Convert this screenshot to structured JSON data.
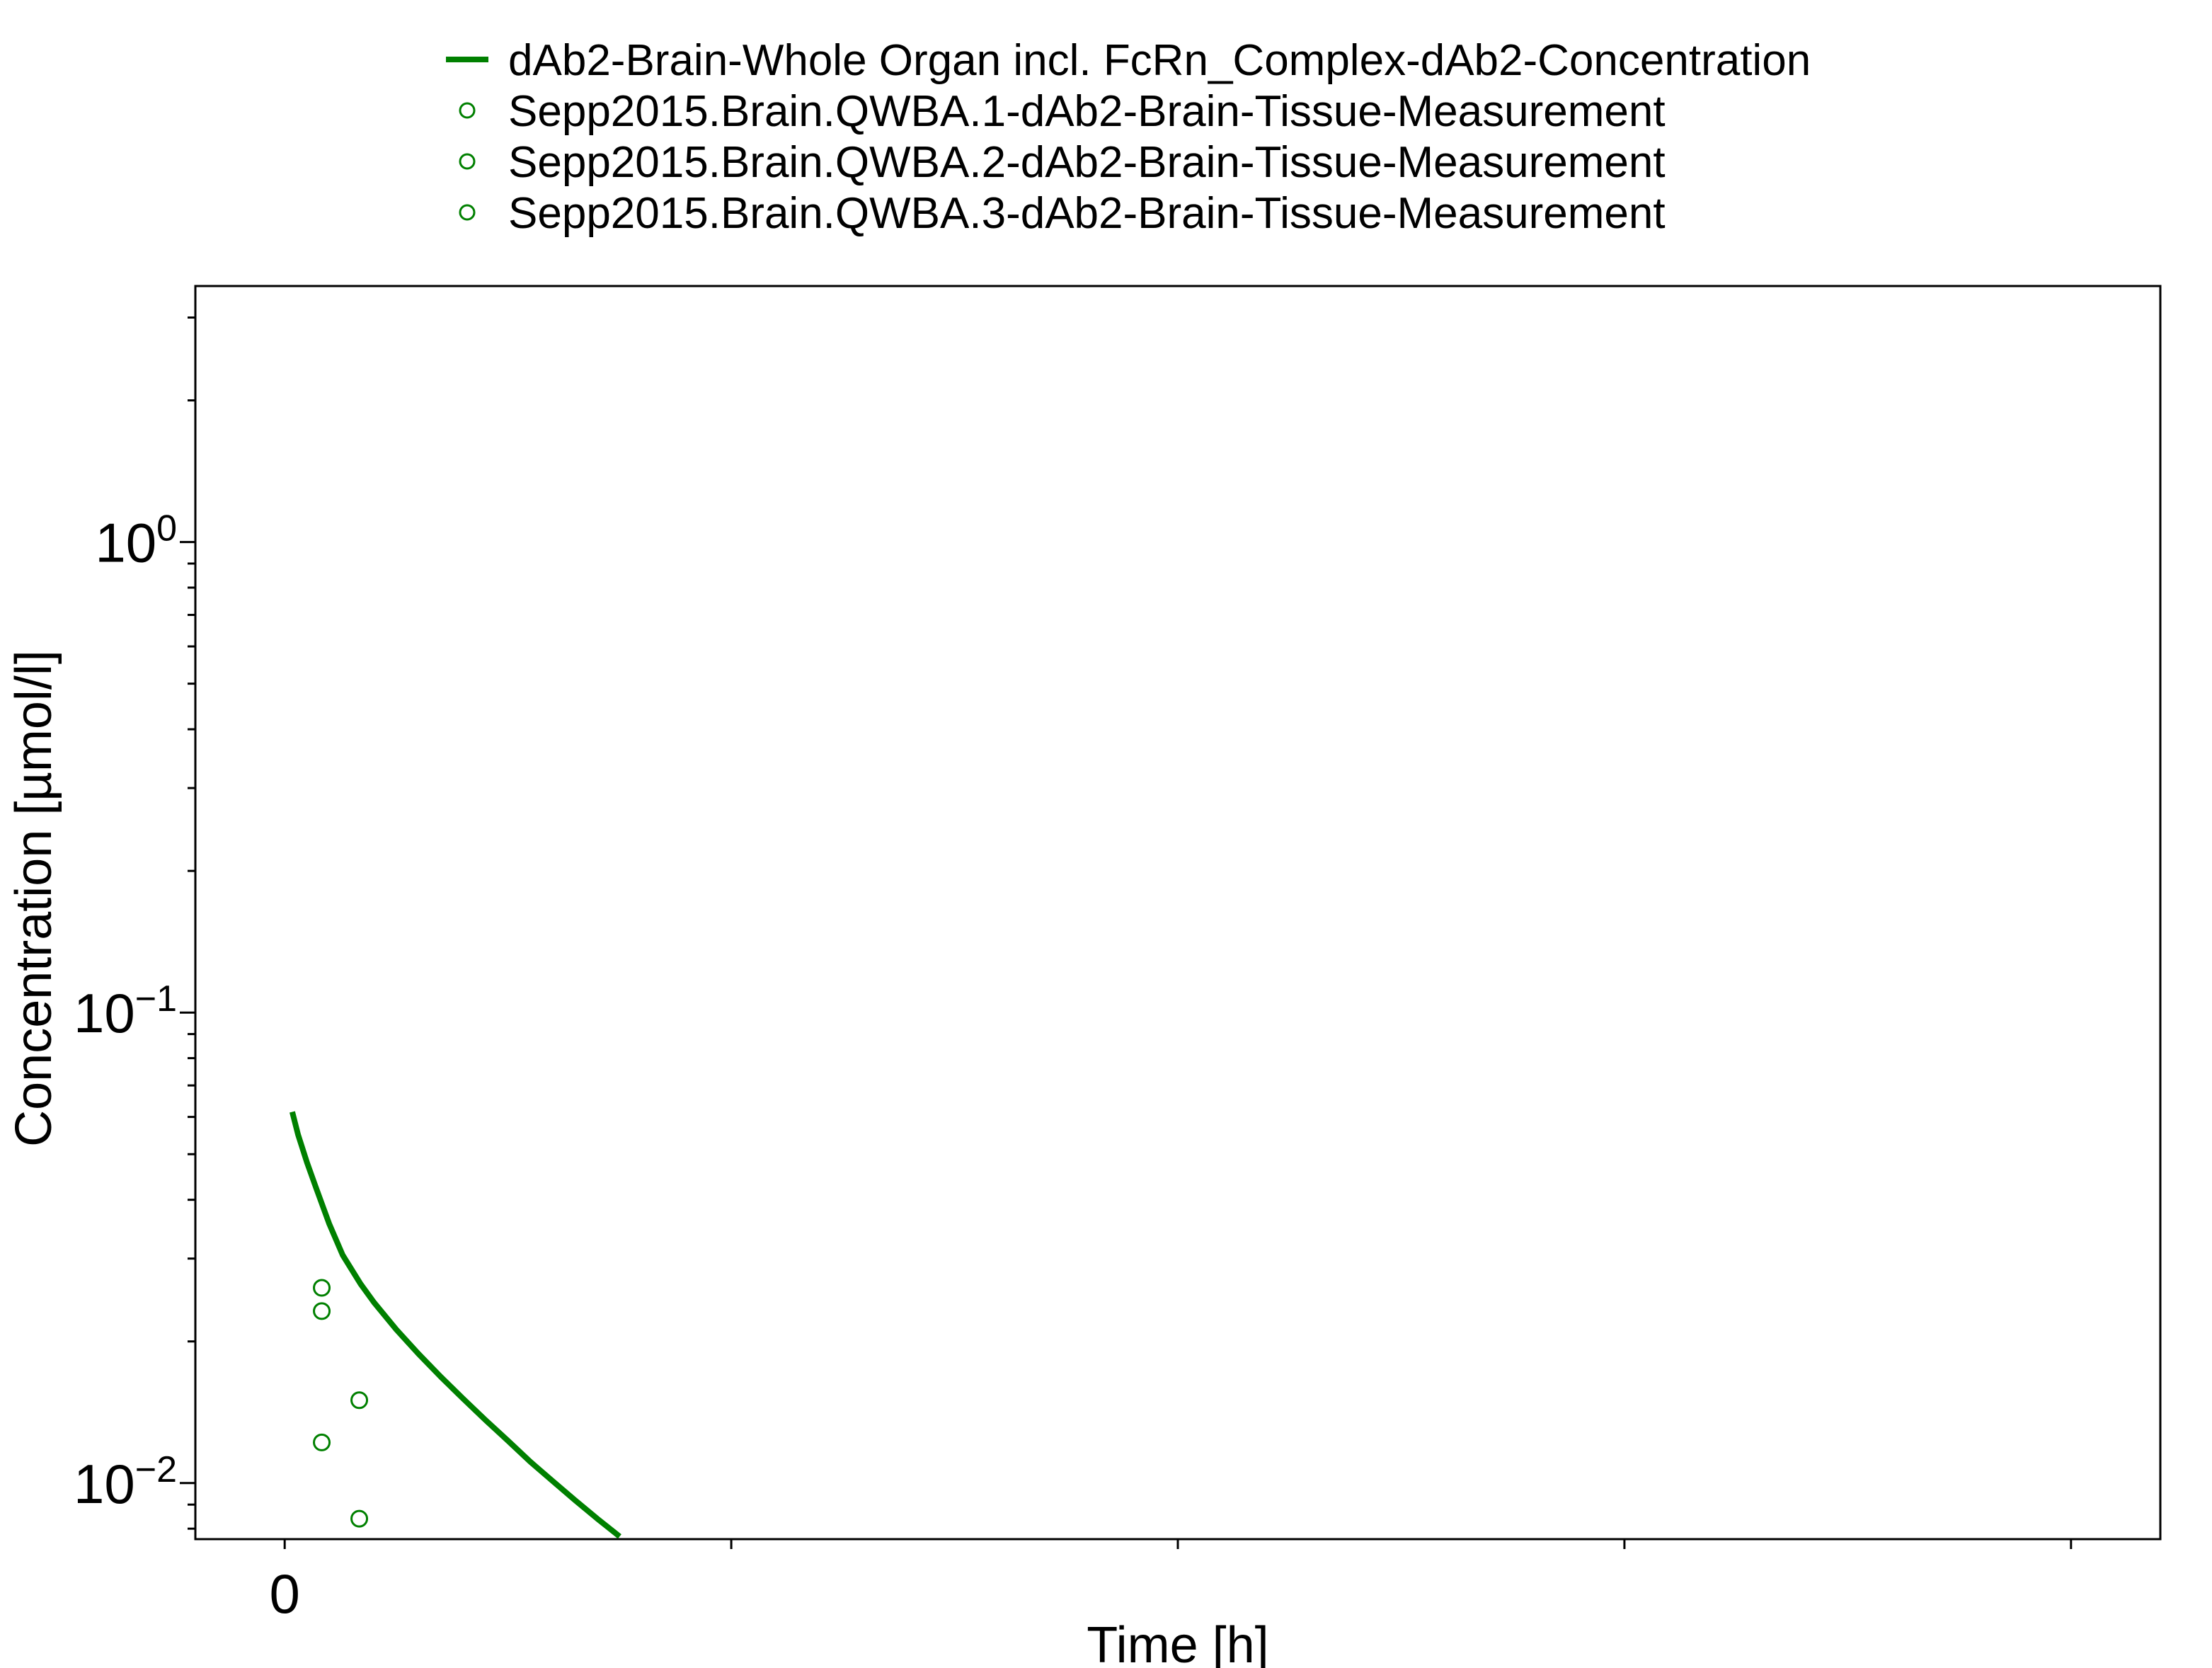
{
  "chart_data": {
    "type": "line",
    "xlabel": "Time [h]",
    "ylabel": "Concentration [µmol/l]",
    "y_scale": "log",
    "xlim": [
      -0.2,
      4.2
    ],
    "ylim": [
      0.0076,
      3.5
    ],
    "x_ticks": [
      0,
      1,
      2,
      3,
      4
    ],
    "x_tick_labels": [
      "0",
      "",
      "",
      "",
      ""
    ],
    "y_major_ticks": [
      {
        "value": 1,
        "base": "10",
        "exp": "0"
      },
      {
        "value": 0.1,
        "base": "10",
        "exp": "−1"
      },
      {
        "value": 0.01,
        "base": "10",
        "exp": "−2"
      }
    ],
    "grid": false,
    "legend_position": "top",
    "series": [
      {
        "name": "dAb2-Brain-Whole Organ incl. FcRn_Complex-dAb2-Concentration",
        "kind": "line",
        "color": "#008000",
        "x": [
          0.017,
          0.03,
          0.05,
          0.07,
          0.1,
          0.13,
          0.17,
          0.2,
          0.25,
          0.3,
          0.35,
          0.4,
          0.45,
          0.5,
          0.55,
          0.6,
          0.65,
          0.7,
          0.75
        ],
        "y": [
          0.0615,
          0.055,
          0.048,
          0.0425,
          0.0355,
          0.0305,
          0.0265,
          0.0242,
          0.0212,
          0.0188,
          0.0168,
          0.0151,
          0.0136,
          0.0123,
          0.0111,
          0.0101,
          0.0092,
          0.0084,
          0.0077
        ]
      },
      {
        "name": "Sepp2015.Brain.QWBA.1-dAb2-Brain-Tissue-Measurement",
        "kind": "scatter",
        "color": "#008000",
        "x": [
          0.083,
          0.167
        ],
        "y": [
          0.026,
          0.015
        ]
      },
      {
        "name": "Sepp2015.Brain.QWBA.2-dAb2-Brain-Tissue-Measurement",
        "kind": "scatter",
        "color": "#008000",
        "x": [
          0.083,
          0.167
        ],
        "y": [
          0.0232,
          0.0084
        ]
      },
      {
        "name": "Sepp2015.Brain.QWBA.3-dAb2-Brain-Tissue-Measurement",
        "kind": "scatter",
        "color": "#008000",
        "x": [
          0.083
        ],
        "y": [
          0.0122
        ]
      }
    ]
  }
}
